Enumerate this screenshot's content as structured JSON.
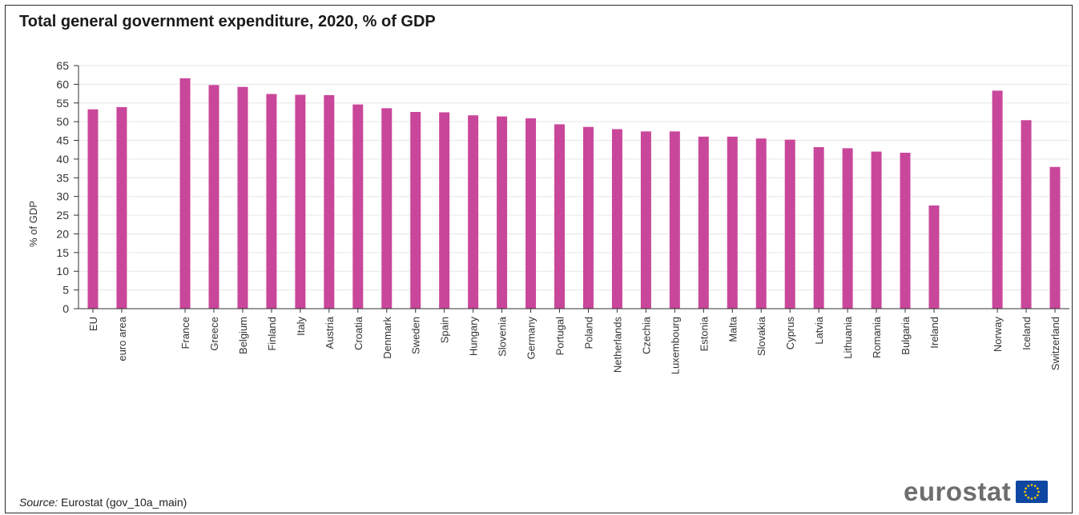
{
  "title": "Total general government expenditure, 2020, % of GDP",
  "source": {
    "label": "Source:",
    "text": "Eurostat (gov_10a_main)"
  },
  "logo": {
    "text": "eurostat",
    "flag_color": "#0e47a1",
    "star_color": "#ffcc00"
  },
  "colors": {
    "bar": "#c9479a",
    "grid": "#e6e6e6",
    "axis": "#333333",
    "text": "#333333"
  },
  "chart_data": {
    "type": "bar",
    "title": "Total general government expenditure, 2020, % of GDP",
    "xlabel": "",
    "ylabel": "% of GDP",
    "ylim": [
      0,
      65
    ],
    "yticks": [
      0,
      5,
      10,
      15,
      20,
      25,
      30,
      35,
      40,
      45,
      50,
      55,
      60,
      65
    ],
    "grid": true,
    "groups": [
      {
        "categories": [
          "EU",
          "euro area"
        ],
        "values": [
          53.3,
          53.9
        ]
      },
      {
        "categories": [
          "France",
          "Greece",
          "Belgium",
          "Finland",
          "Italy",
          "Austria",
          "Croatia",
          "Denmark",
          "Sweden",
          "Spain",
          "Hungary",
          "Slovenia",
          "Germany",
          "Portugal",
          "Poland",
          "Netherlands",
          "Czechia",
          "Luxembourg",
          "Estonia",
          "Malta",
          "Slovakia",
          "Cyprus",
          "Latvia",
          "Lithuania",
          "Romania",
          "Bulgaria",
          "Ireland"
        ],
        "values": [
          61.6,
          59.8,
          59.3,
          57.4,
          57.2,
          57.1,
          54.6,
          53.6,
          52.6,
          52.5,
          51.7,
          51.4,
          50.9,
          49.3,
          48.6,
          48.0,
          47.4,
          47.4,
          46.0,
          46.0,
          45.5,
          45.2,
          43.2,
          42.9,
          42.0,
          41.7,
          27.6
        ]
      },
      {
        "categories": [
          "Norway",
          "Iceland",
          "Switzerland"
        ],
        "values": [
          58.3,
          50.4,
          37.9
        ]
      }
    ]
  }
}
